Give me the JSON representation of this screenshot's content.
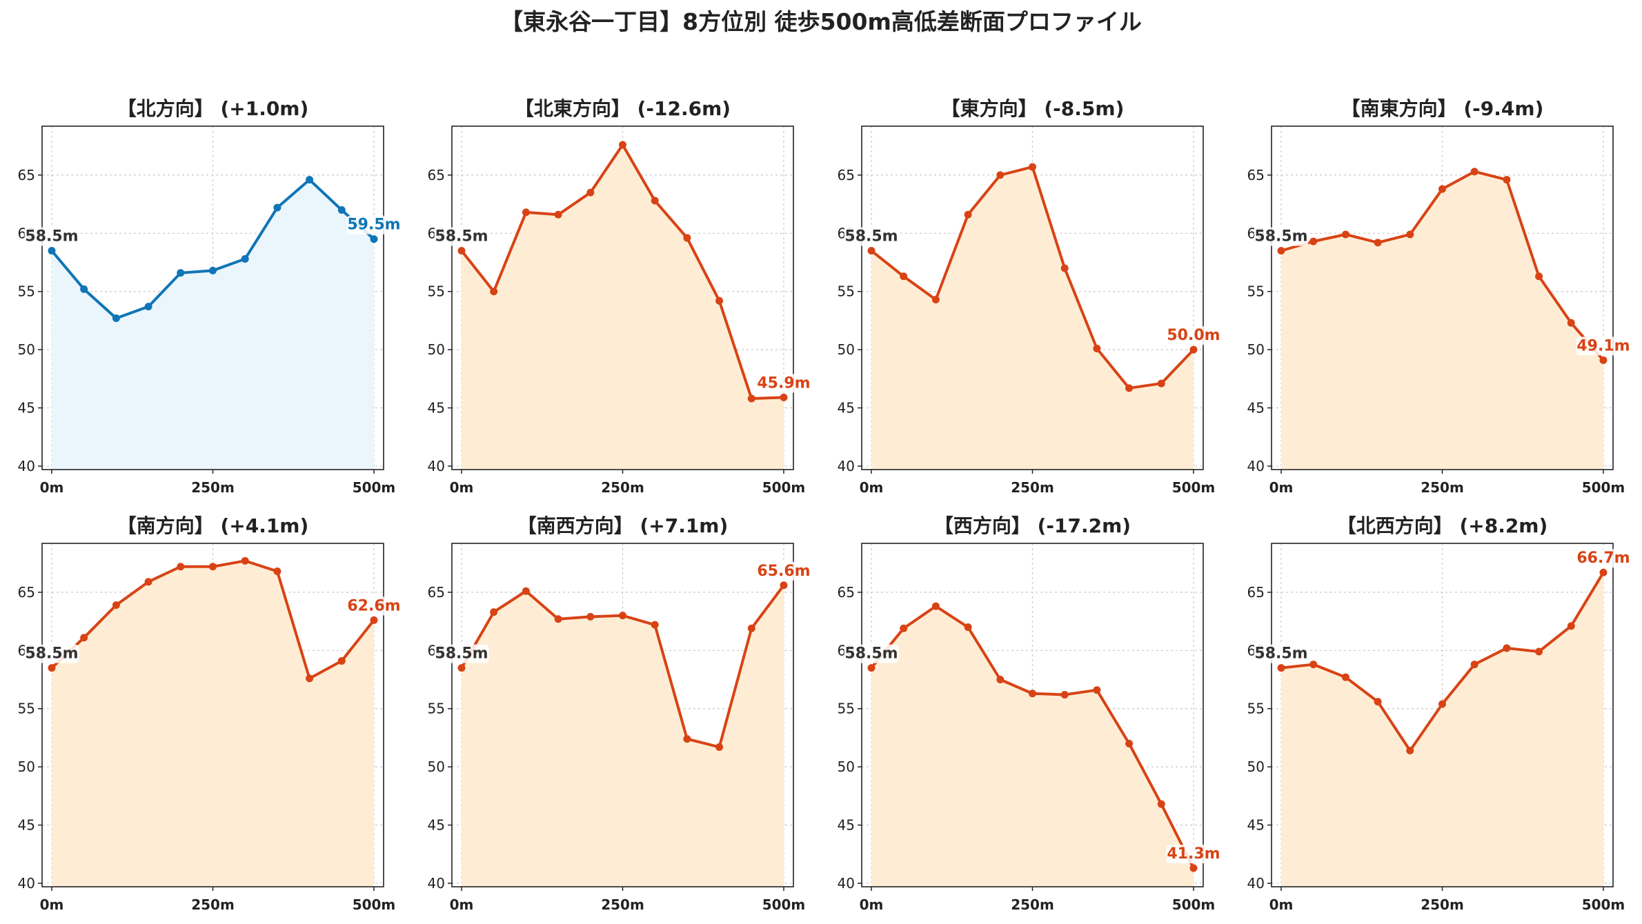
{
  "title": "【東永谷一丁目】8方位別 徒歩500m高低差断面プロファイル",
  "colors": {
    "up_line": "#0f75b6",
    "up_fill": "#eaf6fc",
    "down_line": "#d84315",
    "down_fill": "#feedd4",
    "start_label": "#333333"
  },
  "chart_data": [
    {
      "type": "area",
      "title": "【北方向】 (+1.0m)",
      "trend": "up",
      "x": [
        0,
        50,
        100,
        150,
        200,
        250,
        300,
        350,
        400,
        450,
        500
      ],
      "values": [
        58.5,
        55.2,
        52.7,
        53.7,
        56.6,
        56.8,
        57.8,
        62.2,
        64.6,
        62.0,
        59.5
      ],
      "x_ticks": [
        {
          "value": 0,
          "label": "0m"
        },
        {
          "value": 250,
          "label": "250m"
        },
        {
          "value": 500,
          "label": "500m"
        }
      ],
      "y_ticks": [
        {
          "value": 40,
          "label": "40"
        },
        {
          "value": 45,
          "label": "45"
        },
        {
          "value": 50,
          "label": "50"
        },
        {
          "value": 55,
          "label": "55"
        },
        {
          "value": 60,
          "label": "60"
        },
        {
          "value": 65,
          "label": "65"
        }
      ],
      "start_label": "58.5m",
      "end_label": "59.5m",
      "xlim": [
        -15,
        515
      ],
      "ylim": [
        39.7,
        69.2
      ],
      "grid": true
    },
    {
      "type": "area",
      "title": "【北東方向】 (-12.6m)",
      "trend": "down",
      "x": [
        0,
        50,
        100,
        150,
        200,
        250,
        300,
        350,
        400,
        450,
        500
      ],
      "values": [
        58.5,
        55.0,
        61.8,
        61.6,
        63.5,
        67.6,
        62.8,
        59.6,
        54.2,
        45.8,
        45.9
      ],
      "x_ticks": [
        {
          "value": 0,
          "label": "0m"
        },
        {
          "value": 250,
          "label": "250m"
        },
        {
          "value": 500,
          "label": "500m"
        }
      ],
      "y_ticks": [
        {
          "value": 40,
          "label": "40"
        },
        {
          "value": 45,
          "label": "45"
        },
        {
          "value": 50,
          "label": "50"
        },
        {
          "value": 55,
          "label": "55"
        },
        {
          "value": 60,
          "label": "60"
        },
        {
          "value": 65,
          "label": "65"
        }
      ],
      "start_label": "58.5m",
      "end_label": "45.9m",
      "xlim": [
        -15,
        515
      ],
      "ylim": [
        39.7,
        69.2
      ],
      "grid": true
    },
    {
      "type": "area",
      "title": "【東方向】 (-8.5m)",
      "trend": "down",
      "x": [
        0,
        50,
        100,
        150,
        200,
        250,
        300,
        350,
        400,
        450,
        500
      ],
      "values": [
        58.5,
        56.3,
        54.3,
        61.6,
        65.0,
        65.7,
        57.0,
        50.1,
        46.7,
        47.1,
        50.0
      ],
      "x_ticks": [
        {
          "value": 0,
          "label": "0m"
        },
        {
          "value": 250,
          "label": "250m"
        },
        {
          "value": 500,
          "label": "500m"
        }
      ],
      "y_ticks": [
        {
          "value": 40,
          "label": "40"
        },
        {
          "value": 45,
          "label": "45"
        },
        {
          "value": 50,
          "label": "50"
        },
        {
          "value": 55,
          "label": "55"
        },
        {
          "value": 60,
          "label": "60"
        },
        {
          "value": 65,
          "label": "65"
        }
      ],
      "start_label": "58.5m",
      "end_label": "50.0m",
      "xlim": [
        -15,
        515
      ],
      "ylim": [
        39.7,
        69.2
      ],
      "grid": true
    },
    {
      "type": "area",
      "title": "【南東方向】 (-9.4m)",
      "trend": "down",
      "x": [
        0,
        50,
        100,
        150,
        200,
        250,
        300,
        350,
        400,
        450,
        500
      ],
      "values": [
        58.5,
        59.3,
        59.9,
        59.2,
        59.9,
        63.8,
        65.3,
        64.6,
        56.3,
        52.3,
        49.1
      ],
      "x_ticks": [
        {
          "value": 0,
          "label": "0m"
        },
        {
          "value": 250,
          "label": "250m"
        },
        {
          "value": 500,
          "label": "500m"
        }
      ],
      "y_ticks": [
        {
          "value": 40,
          "label": "40"
        },
        {
          "value": 45,
          "label": "45"
        },
        {
          "value": 50,
          "label": "50"
        },
        {
          "value": 55,
          "label": "55"
        },
        {
          "value": 60,
          "label": "60"
        },
        {
          "value": 65,
          "label": "65"
        }
      ],
      "start_label": "58.5m",
      "end_label": "49.1m",
      "xlim": [
        -15,
        515
      ],
      "ylim": [
        39.7,
        69.2
      ],
      "grid": true
    },
    {
      "type": "area",
      "title": "【南方向】 (+4.1m)",
      "trend": "down",
      "x": [
        0,
        50,
        100,
        150,
        200,
        250,
        300,
        350,
        400,
        450,
        500
      ],
      "values": [
        58.5,
        61.1,
        63.9,
        65.9,
        67.2,
        67.2,
        67.7,
        66.8,
        57.6,
        59.1,
        62.6
      ],
      "x_ticks": [
        {
          "value": 0,
          "label": "0m"
        },
        {
          "value": 250,
          "label": "250m"
        },
        {
          "value": 500,
          "label": "500m"
        }
      ],
      "y_ticks": [
        {
          "value": 40,
          "label": "40"
        },
        {
          "value": 45,
          "label": "45"
        },
        {
          "value": 50,
          "label": "50"
        },
        {
          "value": 55,
          "label": "55"
        },
        {
          "value": 60,
          "label": "60"
        },
        {
          "value": 65,
          "label": "65"
        }
      ],
      "start_label": "58.5m",
      "end_label": "62.6m",
      "xlim": [
        -15,
        515
      ],
      "ylim": [
        39.7,
        69.2
      ],
      "grid": true
    },
    {
      "type": "area",
      "title": "【南西方向】 (+7.1m)",
      "trend": "down",
      "x": [
        0,
        50,
        100,
        150,
        200,
        250,
        300,
        350,
        400,
        450,
        500
      ],
      "values": [
        58.5,
        63.3,
        65.1,
        62.7,
        62.9,
        63.0,
        62.2,
        52.4,
        51.7,
        61.9,
        65.6
      ],
      "x_ticks": [
        {
          "value": 0,
          "label": "0m"
        },
        {
          "value": 250,
          "label": "250m"
        },
        {
          "value": 500,
          "label": "500m"
        }
      ],
      "y_ticks": [
        {
          "value": 40,
          "label": "40"
        },
        {
          "value": 45,
          "label": "45"
        },
        {
          "value": 50,
          "label": "50"
        },
        {
          "value": 55,
          "label": "55"
        },
        {
          "value": 60,
          "label": "60"
        },
        {
          "value": 65,
          "label": "65"
        }
      ],
      "start_label": "58.5m",
      "end_label": "65.6m",
      "xlim": [
        -15,
        515
      ],
      "ylim": [
        39.7,
        69.2
      ],
      "grid": true
    },
    {
      "type": "area",
      "title": "【西方向】 (-17.2m)",
      "trend": "down",
      "x": [
        0,
        50,
        100,
        150,
        200,
        250,
        300,
        350,
        400,
        450,
        500
      ],
      "values": [
        58.5,
        61.9,
        63.8,
        62.0,
        57.5,
        56.3,
        56.2,
        56.6,
        52.0,
        46.8,
        41.3
      ],
      "x_ticks": [
        {
          "value": 0,
          "label": "0m"
        },
        {
          "value": 250,
          "label": "250m"
        },
        {
          "value": 500,
          "label": "500m"
        }
      ],
      "y_ticks": [
        {
          "value": 40,
          "label": "40"
        },
        {
          "value": 45,
          "label": "45"
        },
        {
          "value": 50,
          "label": "50"
        },
        {
          "value": 55,
          "label": "55"
        },
        {
          "value": 60,
          "label": "60"
        },
        {
          "value": 65,
          "label": "65"
        }
      ],
      "start_label": "58.5m",
      "end_label": "41.3m",
      "xlim": [
        -15,
        515
      ],
      "ylim": [
        39.7,
        69.2
      ],
      "grid": true
    },
    {
      "type": "area",
      "title": "【北西方向】 (+8.2m)",
      "trend": "down",
      "x": [
        0,
        50,
        100,
        150,
        200,
        250,
        300,
        350,
        400,
        450,
        500
      ],
      "values": [
        58.5,
        58.8,
        57.7,
        55.6,
        51.4,
        55.4,
        58.8,
        60.2,
        59.9,
        62.1,
        66.7
      ],
      "x_ticks": [
        {
          "value": 0,
          "label": "0m"
        },
        {
          "value": 250,
          "label": "250m"
        },
        {
          "value": 500,
          "label": "500m"
        }
      ],
      "y_ticks": [
        {
          "value": 40,
          "label": "40"
        },
        {
          "value": 45,
          "label": "45"
        },
        {
          "value": 50,
          "label": "50"
        },
        {
          "value": 55,
          "label": "55"
        },
        {
          "value": 60,
          "label": "60"
        },
        {
          "value": 65,
          "label": "65"
        }
      ],
      "start_label": "58.5m",
      "end_label": "66.7m",
      "xlim": [
        -15,
        515
      ],
      "ylim": [
        39.7,
        69.2
      ],
      "grid": true
    }
  ]
}
